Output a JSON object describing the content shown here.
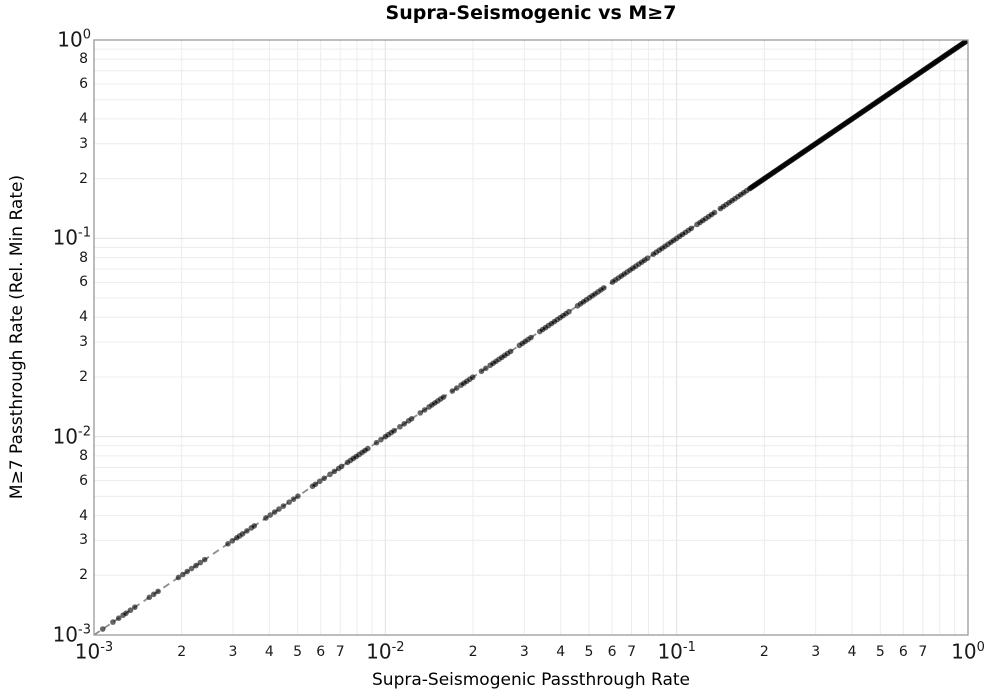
{
  "chart_data": {
    "type": "scatter",
    "title": "Supra-Seismogenic vs M≥7",
    "xlabel": "Supra-Seismogenic Passthrough Rate",
    "ylabel": "M≥7 Passthrough Rate (Rel. Min Rate)",
    "xscale": "log",
    "yscale": "log",
    "xlim": [
      0.001,
      1
    ],
    "ylim": [
      0.001,
      1
    ],
    "grid": "major and minor, light gray",
    "legend": "none",
    "x_major_exponents": [
      -3,
      -2,
      -1,
      0
    ],
    "y_major_exponents": [
      0,
      -1,
      -2,
      -3
    ],
    "major_tick_base": "10",
    "x_minor_labeled_subs": [
      2,
      3,
      4,
      5,
      6,
      7
    ],
    "y_minor_labeled_subs": [
      2,
      3,
      4,
      6,
      8
    ],
    "grid_minor_subs": [
      2,
      3,
      4,
      5,
      6,
      7,
      8,
      9
    ],
    "reference_line": {
      "relation": "y = x",
      "style": "dashed",
      "color": "#8c8c8c"
    },
    "marker": {
      "shape": "circle",
      "radius_px": 2.8,
      "color": "#000000",
      "opacity": 0.6
    },
    "series_note": "All points lie on the 1:1 line (y = x). Values are log10 of passthrough rate; density becomes a solid band from ~0.18 up to 1.0.",
    "points_log10": [
      -2.97,
      -2.935,
      -2.915,
      -2.9,
      -2.89,
      -2.875,
      -2.86,
      -2.81,
      -2.795,
      -2.78,
      -2.71,
      -2.695,
      -2.68,
      -2.665,
      -2.65,
      -2.635,
      -2.62,
      -2.54,
      -2.525,
      -2.51,
      -2.5,
      -2.49,
      -2.475,
      -2.46,
      -2.45,
      -2.41,
      -2.395,
      -2.38,
      -2.365,
      -2.35,
      -2.33,
      -2.315,
      -2.3,
      -2.25,
      -2.24,
      -2.225,
      -2.21,
      -2.19,
      -2.175,
      -2.16,
      -2.15,
      -2.13,
      -2.12,
      -2.11,
      -2.1,
      -2.09,
      -2.08,
      -2.07,
      -2.06,
      -2.03,
      -2.015,
      -2.0,
      -1.99,
      -1.98,
      -1.97,
      -1.95,
      -1.935,
      -1.92,
      -1.91,
      -1.88,
      -1.865,
      -1.85,
      -1.84,
      -1.83,
      -1.82,
      -1.81,
      -1.8,
      -1.77,
      -1.755,
      -1.74,
      -1.73,
      -1.72,
      -1.71,
      -1.7,
      -1.67,
      -1.655,
      -1.64,
      -1.63,
      -1.62,
      -1.61,
      -1.6,
      -1.59,
      -1.58,
      -1.57,
      -1.54,
      -1.53,
      -1.52,
      -1.51,
      -1.5,
      -1.47,
      -1.46,
      -1.45,
      -1.44,
      -1.43,
      -1.42,
      -1.41,
      -1.4,
      -1.39,
      -1.38,
      -1.37,
      -1.34,
      -1.33,
      -1.32,
      -1.31,
      -1.3,
      -1.29,
      -1.28,
      -1.27,
      -1.26,
      -1.25,
      -1.22,
      -1.21,
      -1.2,
      -1.19,
      -1.18,
      -1.17,
      -1.16,
      -1.15,
      -1.14,
      -1.13,
      -1.12,
      -1.11,
      -1.1,
      -1.08,
      -1.07,
      -1.06,
      -1.05,
      -1.04,
      -1.03,
      -1.02,
      -1.01,
      -1.0,
      -0.99,
      -0.98,
      -0.97,
      -0.96,
      -0.95,
      -0.93,
      -0.92,
      -0.91,
      -0.9,
      -0.89,
      -0.88,
      -0.87,
      -0.85,
      -0.84,
      -0.83,
      -0.82,
      -0.81,
      -0.8,
      -0.79,
      -0.78,
      -0.77,
      -0.76
    ],
    "dense_band_log10": {
      "start": -0.75,
      "end": 0.0,
      "step": 0.0035
    },
    "colors": {
      "grid_minor": "#ececec",
      "grid_major": "#e2e2e2",
      "spine": "#999999",
      "tick_text": "#1a1a1a",
      "background": "#ffffff"
    }
  }
}
